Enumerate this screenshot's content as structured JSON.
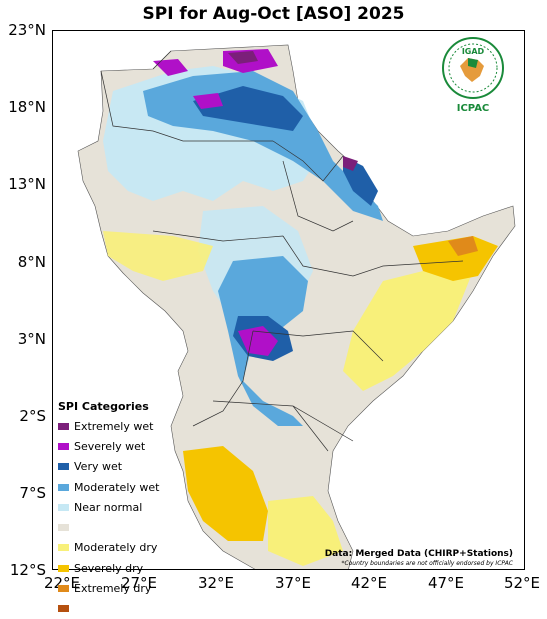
{
  "title": "SPI for Aug-Oct [ASO] 2025",
  "y_ticks": [
    {
      "label": "23°N",
      "lat": 23
    },
    {
      "label": "18°N",
      "lat": 18
    },
    {
      "label": "13°N",
      "lat": 13
    },
    {
      "label": "8°N",
      "lat": 8
    },
    {
      "label": "3°N",
      "lat": 3
    },
    {
      "label": "2°S",
      "lat": -2
    },
    {
      "label": "7°S",
      "lat": -7
    },
    {
      "label": "12°S",
      "lat": -12
    }
  ],
  "x_ticks": [
    {
      "label": "22°E",
      "lon": 22
    },
    {
      "label": "27°E",
      "lon": 27
    },
    {
      "label": "32°E",
      "lon": 32
    },
    {
      "label": "37°E",
      "lon": 37
    },
    {
      "label": "42°E",
      "lon": 42
    },
    {
      "label": "47°E",
      "lon": 47
    },
    {
      "label": "52°E",
      "lon": 52
    }
  ],
  "legend": {
    "title": "SPI Categories",
    "items": [
      {
        "label": "Extremely wet",
        "color": "#7b1f7a"
      },
      {
        "label": "Severely wet",
        "color": "#b010c8"
      },
      {
        "label": "Very wet",
        "color": "#1f5fa8"
      },
      {
        "label": "Moderately wet",
        "color": "#5aa8dc"
      },
      {
        "label": "Near normal",
        "color": "#c6e8f4"
      },
      {
        "label": "",
        "color": "#e6e2d8"
      },
      {
        "label": "Moderately dry",
        "color": "#f8f07a"
      },
      {
        "label": "Severely dry",
        "color": "#f5c400"
      },
      {
        "label": "Extremely dry",
        "color": "#e08a1a"
      },
      {
        "label": "",
        "color": "#b5500f"
      }
    ]
  },
  "data_source": "Data: Merged Data (CHIRP+Stations)",
  "disclaimer": "*Country boundaries are not officially endorsed by ICPAC",
  "logo": {
    "name": "IGAD",
    "org": "ICPAC",
    "color": "#1a8a3a"
  }
}
